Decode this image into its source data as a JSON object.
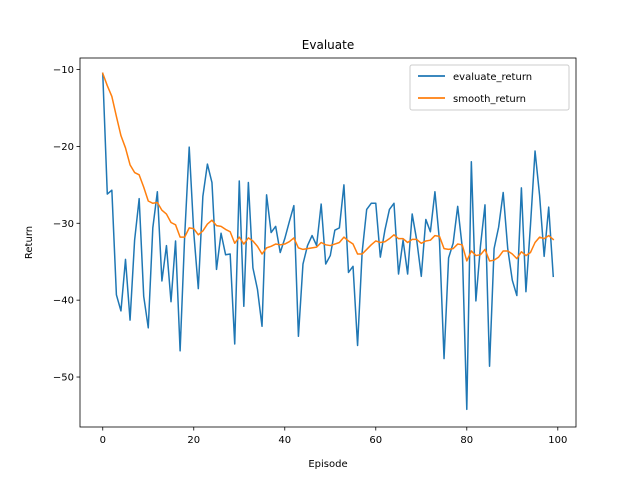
{
  "chart_data": {
    "type": "line",
    "title": "Evaluate",
    "xlabel": "Episode",
    "ylabel": "Return",
    "xlim": [
      -5,
      104
    ],
    "ylim": [
      -56.5,
      -8.5
    ],
    "xticks": [
      0,
      20,
      40,
      60,
      80,
      100
    ],
    "yticks": [
      -50,
      -40,
      -30,
      -20,
      -10
    ],
    "grid": false,
    "legend": "top-right",
    "series": [
      {
        "name": "evaluate_return",
        "color": "#1f77b4",
        "x": [
          0,
          1,
          2,
          3,
          4,
          5,
          6,
          7,
          8,
          9,
          10,
          11,
          12,
          13,
          14,
          15,
          16,
          17,
          18,
          19,
          20,
          21,
          22,
          23,
          24,
          25,
          26,
          27,
          28,
          29,
          30,
          31,
          32,
          33,
          34,
          35,
          36,
          37,
          38,
          39,
          40,
          41,
          42,
          43,
          44,
          45,
          46,
          47,
          48,
          49,
          50,
          51,
          52,
          53,
          54,
          55,
          56,
          57,
          58,
          59,
          60,
          61,
          62,
          63,
          64,
          65,
          66,
          67,
          68,
          69,
          70,
          71,
          72,
          73,
          74,
          75,
          76,
          77,
          78,
          79,
          80,
          81,
          82,
          83,
          84,
          85,
          86,
          87,
          88,
          89,
          90,
          91,
          92,
          93,
          94,
          95,
          96,
          97,
          98,
          99
        ],
        "values": [
          -10.5,
          -26.2,
          -25.7,
          -39.3,
          -41.4,
          -34.7,
          -42.6,
          -32.2,
          -26.8,
          -39.5,
          -43.6,
          -30.6,
          -25.9,
          -37.5,
          -32.9,
          -40.2,
          -32.3,
          -46.6,
          -31.7,
          -20.1,
          -31.2,
          -38.5,
          -26.5,
          -22.3,
          -24.7,
          -36.0,
          -31.3,
          -34.1,
          -34.0,
          -45.7,
          -24.5,
          -40.8,
          -24.7,
          -35.8,
          -38.6,
          -43.4,
          -26.3,
          -31.2,
          -30.4,
          -33.8,
          -32.0,
          -29.8,
          -27.7,
          -44.7,
          -35.3,
          -32.9,
          -31.6,
          -32.9,
          -27.5,
          -35.3,
          -34.2,
          -30.9,
          -30.6,
          -25.0,
          -36.4,
          -35.6,
          -45.9,
          -33.8,
          -28.2,
          -27.4,
          -27.4,
          -34.4,
          -30.9,
          -28.2,
          -27.4,
          -36.6,
          -32.2,
          -36.6,
          -28.8,
          -32.2,
          -36.9,
          -29.5,
          -31.1,
          -25.9,
          -32.3,
          -47.6,
          -34.5,
          -32.6,
          -27.8,
          -33.1,
          -54.2,
          -22.0,
          -40.1,
          -33.0,
          -27.6,
          -48.6,
          -33.3,
          -30.5,
          -26.0,
          -33.3,
          -37.4,
          -39.4,
          -25.4,
          -38.9,
          -30.2,
          -20.6,
          -26.4,
          -34.3,
          -27.9,
          -36.9
        ]
      },
      {
        "name": "smooth_return",
        "color": "#ff7f0e",
        "x": [
          0,
          1,
          2,
          3,
          4,
          5,
          6,
          7,
          8,
          9,
          10,
          11,
          12,
          13,
          14,
          15,
          16,
          17,
          18,
          19,
          20,
          21,
          22,
          23,
          24,
          25,
          26,
          27,
          28,
          29,
          30,
          31,
          32,
          33,
          34,
          35,
          36,
          37,
          38,
          39,
          40,
          41,
          42,
          43,
          44,
          45,
          46,
          47,
          48,
          49,
          50,
          51,
          52,
          53,
          54,
          55,
          56,
          57,
          58,
          59,
          60,
          61,
          62,
          63,
          64,
          65,
          66,
          67,
          68,
          69,
          70,
          71,
          72,
          73,
          74,
          75,
          76,
          77,
          78,
          79,
          80,
          81,
          82,
          83,
          84,
          85,
          86,
          87,
          88,
          89,
          90,
          91,
          92,
          93,
          94,
          95,
          96,
          97,
          98,
          99
        ],
        "values": [
          -10.5,
          -12.1,
          -13.5,
          -16.1,
          -18.6,
          -20.2,
          -22.4,
          -23.4,
          -23.7,
          -25.3,
          -27.1,
          -27.4,
          -27.3,
          -28.3,
          -28.8,
          -29.9,
          -30.2,
          -31.8,
          -31.8,
          -30.6,
          -30.7,
          -31.5,
          -31.0,
          -30.1,
          -29.6,
          -30.3,
          -30.4,
          -30.8,
          -31.1,
          -32.6,
          -31.8,
          -32.7,
          -31.9,
          -32.3,
          -33.0,
          -34.0,
          -33.2,
          -33.0,
          -32.7,
          -32.8,
          -32.7,
          -32.4,
          -31.9,
          -33.2,
          -33.4,
          -33.3,
          -33.2,
          -33.1,
          -32.5,
          -32.8,
          -32.9,
          -32.7,
          -32.5,
          -31.8,
          -32.3,
          -32.7,
          -34.0,
          -34.0,
          -33.4,
          -32.8,
          -32.3,
          -32.5,
          -32.4,
          -32.0,
          -31.5,
          -32.0,
          -32.0,
          -32.5,
          -32.1,
          -32.1,
          -32.6,
          -32.3,
          -32.2,
          -31.6,
          -31.7,
          -33.3,
          -33.4,
          -33.3,
          -32.7,
          -32.8,
          -34.9,
          -33.6,
          -34.2,
          -34.1,
          -33.4,
          -34.9,
          -34.8,
          -34.4,
          -33.6,
          -33.6,
          -34.0,
          -34.6,
          -33.7,
          -34.2,
          -33.8,
          -32.5,
          -31.8,
          -32.0,
          -31.6,
          -32.1
        ]
      }
    ]
  }
}
